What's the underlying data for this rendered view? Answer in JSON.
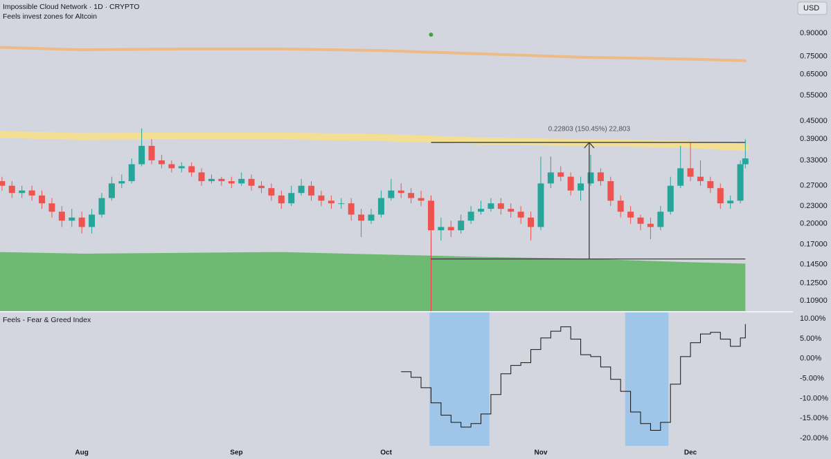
{
  "chart_data": [
    {
      "type": "candlestick",
      "title": "Impossible Cloud Network · 1D · CRYPTO",
      "subtitle": "Feels invest zones for Altcoin",
      "currency": "USD",
      "log_scale": true,
      "grid": false,
      "up_color": "#26a69a",
      "down_color": "#ef5350",
      "xlim": [
        -16.4,
        134.9
      ],
      "ylim": [
        0.1004,
        1.17
      ],
      "yticks": [
        {
          "value": 0.9,
          "label": "0.90000"
        },
        {
          "value": 0.75,
          "label": "0.75000"
        },
        {
          "value": 0.65,
          "label": "0.65000"
        },
        {
          "value": 0.55,
          "label": "0.55000"
        },
        {
          "value": 0.45,
          "label": "0.45000"
        },
        {
          "value": 0.39,
          "label": "0.39000"
        },
        {
          "value": 0.33,
          "label": "0.33000"
        },
        {
          "value": 0.27,
          "label": "0.27000"
        },
        {
          "value": 0.23,
          "label": "0.23000"
        },
        {
          "value": 0.2,
          "label": "0.20000"
        },
        {
          "value": 0.17,
          "label": "0.17000"
        },
        {
          "value": 0.145,
          "label": "0.14500"
        },
        {
          "value": 0.125,
          "label": "0.12500"
        },
        {
          "value": 0.109,
          "label": "0.10900"
        }
      ],
      "x": [
        -16,
        -14,
        -12,
        -10,
        -8,
        -6,
        -4,
        -2,
        0,
        2,
        4,
        6,
        8,
        10,
        12,
        14,
        16,
        18,
        20,
        22,
        24,
        26,
        28,
        30,
        32,
        34,
        36,
        38,
        40,
        42,
        44,
        46,
        48,
        50,
        52,
        54,
        56,
        58,
        60,
        62,
        64,
        66,
        68,
        70,
        72,
        74,
        76,
        78,
        80,
        82,
        84,
        86,
        88,
        90,
        92,
        94,
        96,
        98,
        100,
        102,
        104,
        106,
        108,
        110,
        112,
        114,
        116,
        118,
        120,
        122,
        124,
        126,
        128,
        130,
        132,
        133
      ],
      "open": [
        0.28,
        0.27,
        0.255,
        0.26,
        0.25,
        0.235,
        0.22,
        0.205,
        0.21,
        0.195,
        0.215,
        0.245,
        0.275,
        0.28,
        0.32,
        0.37,
        0.33,
        0.32,
        0.31,
        0.315,
        0.3,
        0.28,
        0.285,
        0.28,
        0.275,
        0.285,
        0.27,
        0.265,
        0.25,
        0.235,
        0.255,
        0.27,
        0.25,
        0.24,
        0.235,
        0.235,
        0.215,
        0.205,
        0.215,
        0.245,
        0.26,
        0.255,
        0.245,
        0.24,
        0.19,
        0.195,
        0.19,
        0.205,
        0.22,
        0.225,
        0.235,
        0.225,
        0.22,
        0.21,
        0.195,
        0.275,
        0.3,
        0.29,
        0.26,
        0.275,
        0.3,
        0.28,
        0.24,
        0.22,
        0.21,
        0.2,
        0.195,
        0.22,
        0.27,
        0.31,
        0.29,
        0.28,
        0.265,
        0.235,
        0.24,
        0.32
      ],
      "high": [
        0.29,
        0.28,
        0.27,
        0.27,
        0.26,
        0.245,
        0.23,
        0.225,
        0.22,
        0.225,
        0.255,
        0.29,
        0.295,
        0.335,
        0.425,
        0.39,
        0.345,
        0.33,
        0.325,
        0.325,
        0.31,
        0.295,
        0.29,
        0.29,
        0.3,
        0.295,
        0.28,
        0.275,
        0.26,
        0.27,
        0.285,
        0.28,
        0.26,
        0.25,
        0.245,
        0.245,
        0.225,
        0.225,
        0.26,
        0.285,
        0.275,
        0.265,
        0.26,
        0.25,
        0.21,
        0.205,
        0.215,
        0.23,
        0.24,
        0.245,
        0.245,
        0.235,
        0.23,
        0.22,
        0.34,
        0.34,
        0.315,
        0.3,
        0.29,
        0.345,
        0.31,
        0.29,
        0.25,
        0.23,
        0.215,
        0.21,
        0.23,
        0.29,
        0.37,
        0.38,
        0.33,
        0.29,
        0.275,
        0.25,
        0.33,
        0.39
      ],
      "low": [
        0.26,
        0.245,
        0.245,
        0.24,
        0.225,
        0.21,
        0.195,
        0.195,
        0.185,
        0.185,
        0.21,
        0.24,
        0.265,
        0.275,
        0.315,
        0.32,
        0.31,
        0.3,
        0.3,
        0.29,
        0.27,
        0.275,
        0.27,
        0.265,
        0.27,
        0.26,
        0.255,
        0.24,
        0.225,
        0.23,
        0.25,
        0.24,
        0.23,
        0.225,
        0.225,
        0.205,
        0.18,
        0.2,
        0.21,
        0.24,
        0.245,
        0.235,
        0.23,
        0.18,
        0.175,
        0.18,
        0.185,
        0.2,
        0.215,
        0.22,
        0.215,
        0.21,
        0.2,
        0.175,
        0.19,
        0.265,
        0.28,
        0.25,
        0.24,
        0.27,
        0.27,
        0.23,
        0.21,
        0.2,
        0.19,
        0.177,
        0.19,
        0.215,
        0.265,
        0.28,
        0.27,
        0.255,
        0.225,
        0.225,
        0.235,
        0.31
      ],
      "close": [
        0.27,
        0.255,
        0.26,
        0.25,
        0.235,
        0.22,
        0.205,
        0.21,
        0.195,
        0.215,
        0.245,
        0.275,
        0.28,
        0.32,
        0.37,
        0.33,
        0.32,
        0.31,
        0.315,
        0.3,
        0.28,
        0.285,
        0.28,
        0.275,
        0.285,
        0.27,
        0.265,
        0.25,
        0.235,
        0.255,
        0.27,
        0.25,
        0.24,
        0.235,
        0.235,
        0.215,
        0.205,
        0.215,
        0.245,
        0.26,
        0.255,
        0.245,
        0.24,
        0.19,
        0.195,
        0.19,
        0.205,
        0.22,
        0.225,
        0.235,
        0.225,
        0.22,
        0.21,
        0.195,
        0.275,
        0.3,
        0.29,
        0.26,
        0.275,
        0.3,
        0.28,
        0.24,
        0.22,
        0.21,
        0.2,
        0.195,
        0.22,
        0.27,
        0.31,
        0.29,
        0.28,
        0.265,
        0.235,
        0.24,
        0.32,
        0.335
      ],
      "overlays": [
        {
          "kind": "area",
          "color": "#6fba72",
          "x": [
            -16.4,
            0,
            20,
            40,
            60,
            80,
            100,
            120,
            133
          ],
          "values": [
            0.16,
            0.158,
            0.159,
            0.16,
            0.157,
            0.154,
            0.152,
            0.148,
            0.146
          ]
        },
        {
          "kind": "line",
          "color": "#f5e08c",
          "width": 10,
          "x": [
            -16.4,
            0,
            20,
            40,
            60,
            80,
            100,
            120,
            133
          ],
          "values": [
            0.405,
            0.398,
            0.4,
            0.4,
            0.395,
            0.385,
            0.38,
            0.375,
            0.365
          ]
        },
        {
          "kind": "line",
          "color": "#f0b87a",
          "width": 4,
          "x": [
            -16.4,
            0,
            20,
            40,
            60,
            80,
            100,
            120,
            133
          ],
          "values": [
            0.805,
            0.79,
            0.795,
            0.795,
            0.785,
            0.765,
            0.745,
            0.735,
            0.725
          ]
        }
      ],
      "marker": {
        "x": 70,
        "value": 0.89,
        "color": "#43a047"
      },
      "vline": {
        "x": 70,
        "from": 0.25,
        "color": "#f23645"
      },
      "measure": {
        "label": "0.22803 (150.45%) 22,803",
        "from_x": 70,
        "to_x": 133,
        "low": 0.1515,
        "high": 0.38,
        "arrow_x": 101.7,
        "color": "#3a3a3a"
      }
    },
    {
      "type": "line",
      "title": "Feels - Fear & Greed Index",
      "step": true,
      "xlim": [
        -16.4,
        134.9
      ],
      "ylim": [
        -21.9,
        11.6
      ],
      "yticks": [
        {
          "value": 10,
          "label": "10.00%"
        },
        {
          "value": 5,
          "label": "5.00%"
        },
        {
          "value": 0,
          "label": "0.00%"
        },
        {
          "value": -5,
          "label": "-5.00%"
        },
        {
          "value": -10,
          "label": "-10.00%"
        },
        {
          "value": -15,
          "label": "-15.00%"
        },
        {
          "value": -20,
          "label": "-20.00%"
        }
      ],
      "xticks": [
        {
          "value": 0,
          "label": "Aug"
        },
        {
          "value": 31,
          "label": "Sep"
        },
        {
          "value": 61,
          "label": "Oct"
        },
        {
          "value": 92,
          "label": "Nov"
        },
        {
          "value": 122,
          "label": "Dec"
        }
      ],
      "zones": {
        "color": "#9fc5e8",
        "ranges": [
          [
            69.7,
            81.7
          ],
          [
            108.9,
            117.6
          ]
        ]
      },
      "series": [
        {
          "color": "#111111",
          "x": [
            64,
            66,
            68,
            70,
            72,
            74,
            76,
            78,
            80,
            82,
            84,
            86,
            88,
            90,
            92,
            94,
            96,
            98,
            100,
            102,
            104,
            106,
            108,
            110,
            112,
            114,
            116,
            118,
            120,
            122,
            124,
            126,
            128,
            130,
            132,
            133
          ],
          "values": [
            -3.3,
            -4.7,
            -7.3,
            -11.1,
            -14.2,
            -16.0,
            -17.2,
            -16.3,
            -13.9,
            -9.0,
            -3.8,
            -1.7,
            -1.0,
            2.3,
            5.2,
            6.9,
            8.0,
            4.9,
            1.0,
            0.5,
            -2.1,
            -5.2,
            -8.2,
            -13.4,
            -16.3,
            -18.0,
            -16.0,
            -6.4,
            0.5,
            4.0,
            6.2,
            6.6,
            4.9,
            3.1,
            5.2,
            8.7
          ]
        }
      ]
    }
  ]
}
